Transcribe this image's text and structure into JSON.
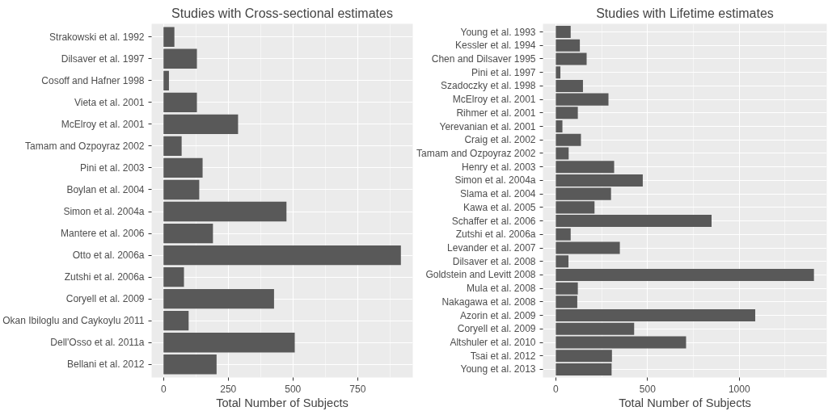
{
  "chart_data": [
    {
      "type": "bar",
      "orientation": "horizontal",
      "title": "Studies with Cross-sectional estimates",
      "xlabel": "Total Number of Subjects",
      "categories": [
        "Strakowski et al. 1992",
        "Dilsaver et al. 1997",
        "Cosoff and Hafner 1998",
        "Vieta et al. 2001",
        "McElroy et al. 2001",
        "Tamam and Ozpoyraz 2002",
        "Pini et al. 2003",
        "Boylan et al. 2004",
        "Simon et al. 2004a",
        "Mantere et al. 2006",
        "Otto et al. 2006a",
        "Zutshi et al. 2006a",
        "Coryell et al. 2009",
        "Okan Ibiloglu and Caykoylu 2011",
        "Dell'Osso et al. 2011a",
        "Bellani et al. 2012"
      ],
      "values": [
        42,
        129,
        21,
        129,
        288,
        70,
        151,
        138,
        475,
        191,
        917,
        79,
        427,
        97,
        507,
        205
      ],
      "color": "#595959",
      "xlim": [
        -46,
        963
      ],
      "xticks": [
        0,
        250,
        500,
        750
      ],
      "grid": true
    },
    {
      "type": "bar",
      "orientation": "horizontal",
      "title": "Studies with Lifetime estimates",
      "xlabel": "Total Number of Subjects",
      "categories": [
        "Young et al. 1993",
        "Kessler et al. 1994",
        "Chen and Dilsaver 1995",
        "Pini et al. 1997",
        "Szadoczky et al. 1998",
        "McElroy et al. 2001",
        "Rihmer et al. 2001",
        "Yerevanian et al. 2001",
        "Craig et al. 2002",
        "Tamam and Ozpoyraz 2002",
        "Henry et al. 2003",
        "Simon et al. 2004a",
        "Slama et al. 2004",
        "Kawa et al. 2005",
        "Schaffer et al. 2006",
        "Zutshi et al. 2006a",
        "Levander et al. 2007",
        "Dilsaver et al. 2008",
        "Goldstein and Levitt 2008",
        "Mula et al. 2008",
        "Nakagawa et al. 2008",
        "Azorin et al. 2009",
        "Coryell et al. 2009",
        "Altshuler et al. 2010",
        "Tsai et al. 2012",
        "Young et al. 2013"
      ],
      "values": [
        81,
        131,
        168,
        25,
        148,
        287,
        120,
        36,
        137,
        70,
        318,
        474,
        301,
        211,
        849,
        81,
        349,
        69,
        1407,
        120,
        117,
        1087,
        427,
        710,
        306,
        304
      ],
      "color": "#595959",
      "xlim": [
        -70,
        1477
      ],
      "xticks": [
        0,
        500,
        1000
      ],
      "grid": true
    }
  ]
}
